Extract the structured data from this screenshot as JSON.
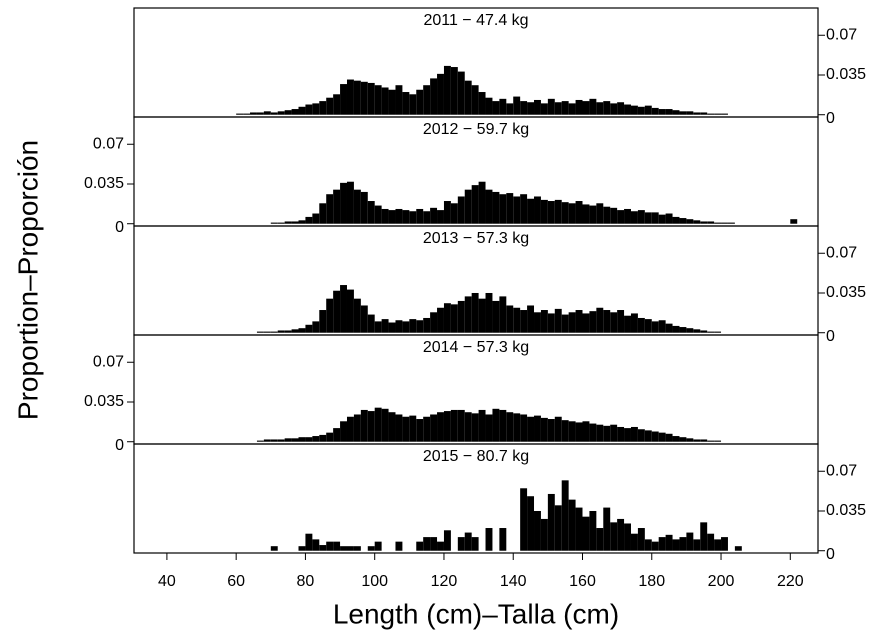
{
  "chart_data": {
    "type": "histogram",
    "xlabel": "Length (cm)–Talla (cm)",
    "ylabel": "Proportion–Proporción",
    "xlim": [
      30.5,
      228
    ],
    "xticks": [
      40,
      60,
      80,
      100,
      120,
      140,
      160,
      180,
      200,
      220
    ],
    "color": "#000000",
    "bins": [
      60,
      62,
      64,
      66,
      68,
      70,
      72,
      74,
      76,
      78,
      80,
      82,
      84,
      86,
      88,
      90,
      92,
      94,
      96,
      98,
      100,
      102,
      104,
      106,
      108,
      110,
      112,
      114,
      116,
      118,
      120,
      122,
      124,
      126,
      128,
      130,
      132,
      134,
      136,
      138,
      140,
      142,
      144,
      146,
      148,
      150,
      152,
      154,
      156,
      158,
      160,
      162,
      164,
      166,
      168,
      170,
      172,
      174,
      176,
      178,
      180,
      182,
      184,
      186,
      188,
      190,
      192,
      194,
      196,
      198,
      200,
      202,
      204,
      206,
      208,
      210,
      212,
      214,
      216,
      218,
      220,
      222
    ],
    "panels": [
      {
        "label": "2011  −  47.4  kg",
        "yaxis_side": "right",
        "ylim": [
          -0.002,
          0.094
        ],
        "yticks": [
          0,
          0.035,
          0.07
        ],
        "counts": [
          0.001,
          0.001,
          0.002,
          0.002,
          0.003,
          0.002,
          0.003,
          0.004,
          0.005,
          0.007,
          0.009,
          0.01,
          0.012,
          0.015,
          0.018,
          0.027,
          0.031,
          0.03,
          0.029,
          0.028,
          0.026,
          0.024,
          0.022,
          0.026,
          0.02,
          0.018,
          0.022,
          0.026,
          0.032,
          0.036,
          0.043,
          0.042,
          0.038,
          0.03,
          0.026,
          0.02,
          0.015,
          0.012,
          0.014,
          0.01,
          0.016,
          0.012,
          0.011,
          0.013,
          0.01,
          0.014,
          0.011,
          0.012,
          0.01,
          0.013,
          0.012,
          0.014,
          0.011,
          0.012,
          0.01,
          0.011,
          0.009,
          0.008,
          0.007,
          0.008,
          0.006,
          0.005,
          0.005,
          0.004,
          0.003,
          0.003,
          0.002,
          0.002,
          0.001,
          0.001,
          0.001,
          0,
          0,
          0,
          0,
          0,
          0,
          0,
          0,
          0,
          0
        ]
      },
      {
        "label": "2012  −  59.7  kg",
        "yaxis_side": "left",
        "ylim": [
          -0.002,
          0.094
        ],
        "yticks": [
          0,
          0.035,
          0.07
        ],
        "counts": [
          0,
          0,
          0,
          0,
          0,
          0.001,
          0.001,
          0.002,
          0.002,
          0.003,
          0.006,
          0.009,
          0.018,
          0.026,
          0.03,
          0.036,
          0.037,
          0.03,
          0.028,
          0.02,
          0.016,
          0.013,
          0.012,
          0.013,
          0.012,
          0.011,
          0.013,
          0.011,
          0.014,
          0.012,
          0.02,
          0.018,
          0.024,
          0.03,
          0.034,
          0.037,
          0.03,
          0.028,
          0.026,
          0.027,
          0.024,
          0.026,
          0.022,
          0.024,
          0.021,
          0.02,
          0.021,
          0.019,
          0.018,
          0.02,
          0.017,
          0.016,
          0.018,
          0.015,
          0.014,
          0.012,
          0.013,
          0.011,
          0.012,
          0.01,
          0.01,
          0.008,
          0.009,
          0.006,
          0.005,
          0.004,
          0.003,
          0.002,
          0.002,
          0.001,
          0.001,
          0.001,
          0,
          0,
          0,
          0,
          0,
          0,
          0,
          0,
          0.004
        ]
      },
      {
        "label": "2013  −  57.3  kg",
        "yaxis_side": "right",
        "ylim": [
          -0.002,
          0.094
        ],
        "yticks": [
          0,
          0.035,
          0.07
        ],
        "counts": [
          0,
          0,
          0,
          0.001,
          0.001,
          0.001,
          0.002,
          0.002,
          0.003,
          0.004,
          0.007,
          0.01,
          0.02,
          0.03,
          0.037,
          0.042,
          0.038,
          0.03,
          0.024,
          0.016,
          0.01,
          0.012,
          0.009,
          0.011,
          0.01,
          0.012,
          0.011,
          0.013,
          0.018,
          0.022,
          0.026,
          0.025,
          0.028,
          0.032,
          0.035,
          0.03,
          0.035,
          0.028,
          0.032,
          0.024,
          0.022,
          0.02,
          0.024,
          0.018,
          0.02,
          0.017,
          0.021,
          0.016,
          0.018,
          0.02,
          0.017,
          0.019,
          0.022,
          0.02,
          0.018,
          0.02,
          0.015,
          0.017,
          0.013,
          0.012,
          0.01,
          0.011,
          0.008,
          0.006,
          0.005,
          0.004,
          0.003,
          0.002,
          0.001,
          0.001,
          0,
          0,
          0,
          0,
          0,
          0,
          0,
          0,
          0,
          0,
          0
        ]
      },
      {
        "label": "2014  −  57.3  kg",
        "yaxis_side": "left",
        "ylim": [
          -0.002,
          0.094
        ],
        "yticks": [
          0,
          0.035,
          0.07
        ],
        "counts": [
          0,
          0,
          0,
          0.001,
          0.002,
          0.002,
          0.002,
          0.003,
          0.003,
          0.004,
          0.004,
          0.005,
          0.006,
          0.008,
          0.012,
          0.018,
          0.022,
          0.024,
          0.028,
          0.027,
          0.03,
          0.029,
          0.026,
          0.024,
          0.022,
          0.023,
          0.02,
          0.022,
          0.024,
          0.026,
          0.027,
          0.028,
          0.028,
          0.026,
          0.025,
          0.028,
          0.024,
          0.029,
          0.028,
          0.026,
          0.025,
          0.024,
          0.022,
          0.023,
          0.021,
          0.02,
          0.022,
          0.019,
          0.018,
          0.017,
          0.018,
          0.016,
          0.015,
          0.014,
          0.015,
          0.013,
          0.012,
          0.013,
          0.011,
          0.01,
          0.009,
          0.008,
          0.007,
          0.005,
          0.004,
          0.003,
          0.002,
          0.002,
          0.001,
          0.001,
          0,
          0,
          0,
          0,
          0,
          0,
          0,
          0,
          0,
          0,
          0
        ]
      },
      {
        "label": "2015  −  80.7  kg",
        "yaxis_side": "right",
        "ylim": [
          -0.002,
          0.094
        ],
        "yticks": [
          0,
          0.035,
          0.07
        ],
        "counts": [
          0,
          0,
          0,
          0,
          0,
          0.004,
          0,
          0,
          0,
          0.004,
          0.015,
          0.01,
          0.005,
          0.008,
          0.008,
          0.004,
          0.004,
          0.004,
          0,
          0.004,
          0.008,
          0,
          0,
          0.008,
          0,
          0,
          0.008,
          0.012,
          0.012,
          0.008,
          0.018,
          0,
          0.012,
          0.016,
          0.012,
          0,
          0.02,
          0,
          0.02,
          0,
          0,
          0.055,
          0.048,
          0.035,
          0.028,
          0.05,
          0.04,
          0.062,
          0.045,
          0.038,
          0.03,
          0.035,
          0.02,
          0.038,
          0.025,
          0.028,
          0.024,
          0.015,
          0.02,
          0.01,
          0.008,
          0.012,
          0.014,
          0.01,
          0.012,
          0.016,
          0.01,
          0.025,
          0.015,
          0.01,
          0.012,
          0,
          0.004,
          0,
          0,
          0,
          0,
          0,
          0,
          0,
          0
        ]
      }
    ]
  }
}
